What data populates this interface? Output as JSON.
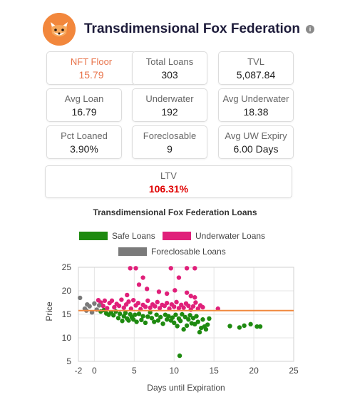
{
  "header": {
    "title": "Transdimensional Fox Federation",
    "info_icon": "info-icon",
    "info_glyph": "i"
  },
  "stats": [
    {
      "id": "nft-floor",
      "label": "NFT Floor",
      "value": "15.79"
    },
    {
      "id": "total-loans",
      "label": "Total Loans",
      "value": "303"
    },
    {
      "id": "tvl",
      "label": "TVL",
      "value": "5,087.84"
    },
    {
      "id": "avg-loan",
      "label": "Avg Loan",
      "value": "16.79"
    },
    {
      "id": "underwater",
      "label": "Underwater",
      "value": "192"
    },
    {
      "id": "avg-underwater",
      "label": "Avg Underwater",
      "value": "18.38"
    },
    {
      "id": "pct-loaned",
      "label": "Pct Loaned",
      "value": "3.90%"
    },
    {
      "id": "foreclosable",
      "label": "Foreclosable",
      "value": "9"
    },
    {
      "id": "avg-uw-expiry",
      "label": "Avg UW Expiry",
      "value": "6.00 Days"
    }
  ],
  "ltv": {
    "label": "LTV",
    "value": "106.31%"
  },
  "colors": {
    "safe": "#1e8a10",
    "underwater": "#e0207a",
    "foreclosable": "#7a7a7a",
    "floor_line": "#f0883e",
    "accent": "#e8734a",
    "ltv": "#e00000"
  },
  "chart_data": {
    "type": "scatter",
    "title": "Transdimensional Fox Federation Loans",
    "xlabel": "Days until Expiration",
    "ylabel": "Price",
    "xlim": [
      -2,
      25
    ],
    "ylim": [
      5,
      25
    ],
    "xticks": [
      -2,
      0,
      5,
      10,
      15,
      20,
      25
    ],
    "yticks": [
      5,
      10,
      15,
      20,
      25
    ],
    "grid": true,
    "legend_position": "top",
    "floor_line": 15.79,
    "series": [
      {
        "name": "Safe Loans",
        "color": "#1e8a10",
        "points": [
          [
            0.8,
            15.6
          ],
          [
            1.2,
            15.9
          ],
          [
            1.5,
            15.2
          ],
          [
            1.8,
            14.9
          ],
          [
            2.1,
            15.4
          ],
          [
            2.4,
            14.8
          ],
          [
            2.7,
            15.6
          ],
          [
            3.0,
            14.2
          ],
          [
            3.2,
            15.1
          ],
          [
            3.5,
            13.6
          ],
          [
            3.7,
            14.6
          ],
          [
            3.9,
            15.3
          ],
          [
            4.1,
            14.1
          ],
          [
            4.3,
            13.7
          ],
          [
            4.5,
            15.0
          ],
          [
            4.7,
            14.4
          ],
          [
            4.9,
            13.9
          ],
          [
            5.1,
            14.9
          ],
          [
            5.3,
            13.4
          ],
          [
            5.6,
            15.1
          ],
          [
            5.9,
            13.8
          ],
          [
            6.1,
            14.6
          ],
          [
            6.4,
            13.2
          ],
          [
            6.7,
            14.5
          ],
          [
            7.0,
            15.4
          ],
          [
            7.2,
            14.2
          ],
          [
            7.5,
            13.4
          ],
          [
            7.8,
            14.9
          ],
          [
            8.0,
            13.7
          ],
          [
            8.3,
            14.4
          ],
          [
            8.6,
            13.0
          ],
          [
            8.9,
            14.9
          ],
          [
            9.1,
            13.9
          ],
          [
            9.3,
            14.6
          ],
          [
            9.6,
            13.7
          ],
          [
            9.8,
            14.3
          ],
          [
            10.0,
            13.2
          ],
          [
            10.2,
            14.9
          ],
          [
            10.4,
            12.5
          ],
          [
            10.6,
            14.1
          ],
          [
            10.8,
            13.6
          ],
          [
            11.0,
            15.0
          ],
          [
            11.2,
            11.8
          ],
          [
            11.4,
            14.4
          ],
          [
            11.6,
            12.6
          ],
          [
            11.8,
            13.9
          ],
          [
            12.0,
            14.8
          ],
          [
            12.2,
            13.1
          ],
          [
            12.4,
            14.2
          ],
          [
            12.6,
            12.9
          ],
          [
            12.8,
            14.6
          ],
          [
            13.0,
            13.4
          ],
          [
            13.2,
            11.2
          ],
          [
            13.4,
            12.1
          ],
          [
            13.6,
            13.9
          ],
          [
            13.8,
            12.4
          ],
          [
            14.0,
            11.8
          ],
          [
            14.2,
            12.8
          ],
          [
            14.4,
            14.1
          ],
          [
            10.7,
            6.2
          ],
          [
            17.0,
            12.5
          ],
          [
            18.2,
            12.2
          ],
          [
            18.8,
            12.6
          ],
          [
            19.6,
            12.9
          ],
          [
            20.4,
            12.4
          ],
          [
            20.8,
            12.4
          ]
        ]
      },
      {
        "name": "Underwater Loans",
        "color": "#e0207a",
        "points": [
          [
            0.5,
            18.0
          ],
          [
            0.8,
            17.5
          ],
          [
            1.1,
            16.8
          ],
          [
            1.3,
            17.9
          ],
          [
            1.6,
            16.3
          ],
          [
            1.9,
            17.4
          ],
          [
            2.2,
            17.9
          ],
          [
            2.5,
            16.5
          ],
          [
            2.8,
            17.2
          ],
          [
            3.1,
            16.8
          ],
          [
            3.4,
            18.1
          ],
          [
            3.7,
            16.4
          ],
          [
            4.0,
            17.1
          ],
          [
            4.3,
            17.7
          ],
          [
            4.6,
            16.2
          ],
          [
            4.9,
            18.0
          ],
          [
            5.2,
            16.9
          ],
          [
            5.5,
            17.4
          ],
          [
            5.8,
            16.1
          ],
          [
            6.1,
            17.0
          ],
          [
            6.4,
            16.6
          ],
          [
            6.7,
            17.9
          ],
          [
            7.0,
            16.4
          ],
          [
            7.3,
            17.1
          ],
          [
            7.6,
            16.7
          ],
          [
            7.9,
            17.6
          ],
          [
            8.2,
            16.3
          ],
          [
            8.5,
            17.0
          ],
          [
            8.8,
            16.8
          ],
          [
            9.1,
            17.4
          ],
          [
            9.4,
            16.2
          ],
          [
            9.7,
            17.1
          ],
          [
            10.0,
            16.6
          ],
          [
            10.3,
            17.6
          ],
          [
            10.6,
            16.3
          ],
          [
            10.9,
            17.0
          ],
          [
            11.2,
            16.4
          ],
          [
            11.5,
            17.3
          ],
          [
            11.8,
            16.8
          ],
          [
            12.1,
            16.0
          ],
          [
            12.4,
            16.7
          ],
          [
            12.7,
            17.5
          ],
          [
            13.0,
            16.2
          ],
          [
            13.3,
            16.9
          ],
          [
            13.6,
            16.5
          ],
          [
            4.5,
            24.8
          ],
          [
            5.2,
            24.8
          ],
          [
            6.1,
            22.8
          ],
          [
            9.6,
            24.8
          ],
          [
            10.6,
            22.8
          ],
          [
            11.6,
            24.8
          ],
          [
            12.6,
            24.8
          ],
          [
            5.6,
            21.3
          ],
          [
            6.6,
            20.4
          ],
          [
            8.1,
            19.8
          ],
          [
            9.1,
            19.4
          ],
          [
            10.1,
            20.1
          ],
          [
            11.6,
            19.6
          ],
          [
            4.1,
            19.1
          ],
          [
            12.1,
            18.9
          ],
          [
            12.6,
            18.6
          ],
          [
            15.5,
            16.2
          ]
        ]
      },
      {
        "name": "Foreclosable Loans",
        "color": "#7a7a7a",
        "points": [
          [
            -1.8,
            18.5
          ],
          [
            -1.2,
            16.2
          ],
          [
            -1.0,
            15.8
          ],
          [
            -0.9,
            17.1
          ],
          [
            -0.6,
            16.7
          ],
          [
            -0.3,
            15.4
          ],
          [
            0.0,
            17.3
          ],
          [
            0.3,
            16.0
          ],
          [
            0.6,
            16.9
          ]
        ]
      }
    ]
  }
}
